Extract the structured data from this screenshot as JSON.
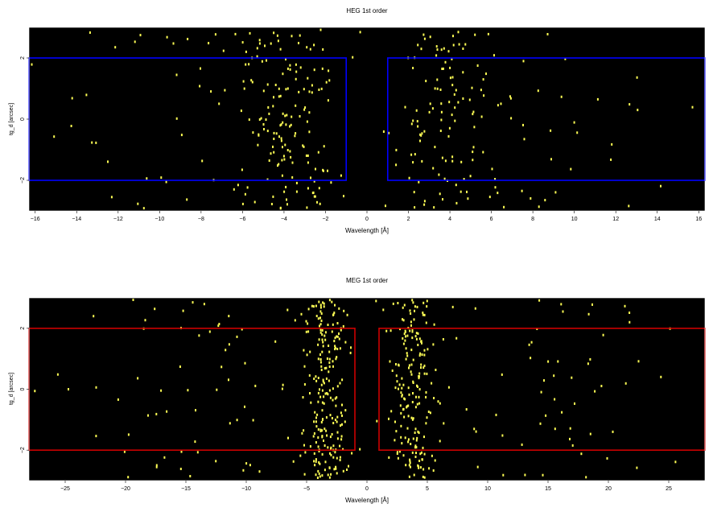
{
  "chart_data": [
    {
      "type": "heatmap",
      "title": "HEG 1st order",
      "xlabel": "Wavelength [Å]",
      "ylabel": "tg_d [arcsec]",
      "xlim": [
        -16.3,
        16.3
      ],
      "ylim": [
        -3.0,
        3.0
      ],
      "xticks": [
        -16,
        -14,
        -12,
        -10,
        -8,
        -6,
        -4,
        -2,
        0,
        2,
        4,
        6,
        8,
        10,
        12,
        14,
        16
      ],
      "yticks": [
        -2,
        0,
        2
      ],
      "background": "#000000",
      "event_color": "#ffff55",
      "region_color": "#0000ff",
      "regions": [
        {
          "x": [
            -16.3,
            -1.0
          ],
          "y": [
            -2.0,
            2.0
          ]
        },
        {
          "x": [
            1.0,
            16.3
          ],
          "y": [
            -2.0,
            2.0
          ]
        }
      ],
      "events": {
        "count": 360,
        "arms": [
          {
            "center": -3.8,
            "spread": 1.3,
            "weight": 0.43
          },
          {
            "center": 3.6,
            "spread": 1.3,
            "weight": 0.31
          },
          {
            "center": -8.0,
            "spread": 3.5,
            "weight": 0.13
          },
          {
            "center": 9.0,
            "spread": 4.0,
            "weight": 0.13
          }
        ]
      }
    },
    {
      "type": "heatmap",
      "title": "MEG 1st order",
      "xlabel": "Wavelength [Å]",
      "ylabel": "tg_d [arcsec]",
      "xlim": [
        -28.0,
        28.0
      ],
      "ylim": [
        -3.0,
        3.0
      ],
      "xticks": [
        -25,
        -20,
        -15,
        -10,
        -5,
        0,
        5,
        10,
        15,
        20,
        25
      ],
      "yticks": [
        -2,
        0,
        2
      ],
      "background": "#000000",
      "event_color": "#ffff55",
      "region_color": "#cc0000",
      "regions": [
        {
          "x": [
            -28.0,
            -1.0
          ],
          "y": [
            -2.0,
            2.0
          ]
        },
        {
          "x": [
            1.0,
            28.0
          ],
          "y": [
            -2.0,
            2.0
          ]
        }
      ],
      "events": {
        "count": 560,
        "arms": [
          {
            "center": -3.6,
            "spread": 0.9,
            "weight": 0.4
          },
          {
            "center": 3.6,
            "spread": 1.0,
            "weight": 0.34
          },
          {
            "center": -13.0,
            "spread": 7.0,
            "weight": 0.13
          },
          {
            "center": 13.0,
            "spread": 7.0,
            "weight": 0.13
          }
        ]
      }
    }
  ]
}
